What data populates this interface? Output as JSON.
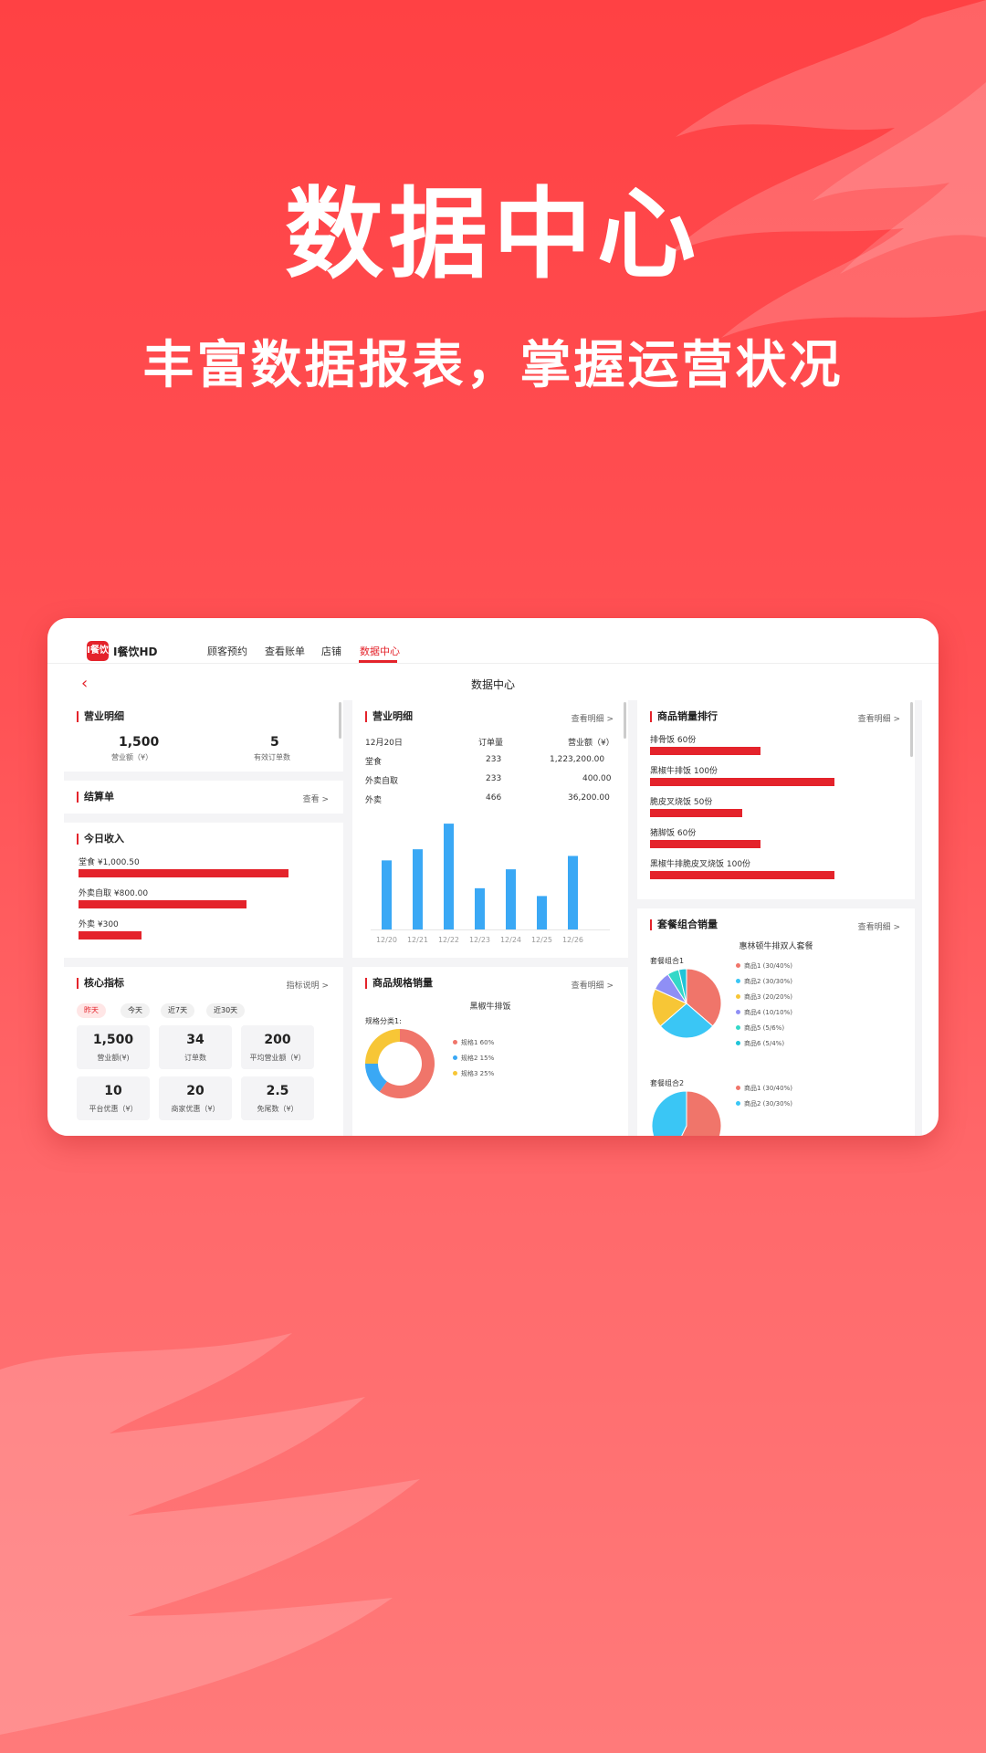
{
  "hero": {
    "title": "数据中心",
    "subtitle": "丰富数据报表，掌握运营状况"
  },
  "app": {
    "logo_mark": "I餐饮",
    "name": "I餐饮HD",
    "nav": [
      "顾客预约",
      "查看账单",
      "店铺",
      "数据中心"
    ],
    "active_nav": "数据中心",
    "page_title": "数据中心"
  },
  "revenue_card": {
    "title": "营业明细",
    "stats": [
      {
        "value": "1,500",
        "label": "营业额（¥）"
      },
      {
        "value": "5",
        "label": "有效订单数"
      }
    ]
  },
  "settlement_card": {
    "title": "结算单",
    "link": "查看 >"
  },
  "income_card": {
    "title": "今日收入",
    "items": [
      {
        "label": "堂食 ¥1,000.50",
        "value": 1000.5
      },
      {
        "label": "外卖自取 ¥800.00",
        "value": 800
      },
      {
        "label": "外卖 ¥300",
        "value": 300
      }
    ]
  },
  "core_card": {
    "title": "核心指标",
    "link": "指标说明 >",
    "chips": [
      "昨天",
      "今天",
      "近7天",
      "近30天"
    ],
    "active_chip": "昨天",
    "metrics": [
      {
        "value": "1,500",
        "label": "营业额(¥)"
      },
      {
        "value": "34",
        "label": "订单数"
      },
      {
        "value": "200",
        "label": "平均营业额（¥）"
      },
      {
        "value": "10",
        "label": "平台优惠（¥）"
      },
      {
        "value": "20",
        "label": "商家优惠（¥）"
      },
      {
        "value": "2.5",
        "label": "免尾数（¥）"
      }
    ]
  },
  "detail_card": {
    "title": "营业明细",
    "link": "查看明细 >",
    "table": {
      "headers": [
        "12月20日",
        "订单量",
        "营业额（¥）"
      ],
      "rows": [
        [
          "堂食",
          "233",
          "1,223,200.00"
        ],
        [
          "外卖自取",
          "233",
          "400.00"
        ],
        [
          "外卖",
          "466",
          "36,200.00"
        ]
      ]
    }
  },
  "chart_data": {
    "type": "bar",
    "categories": [
      "12/20",
      "12/21",
      "12/22",
      "12/23",
      "12/24",
      "12/25",
      "12/26"
    ],
    "values": [
      62,
      72,
      95,
      37,
      54,
      30,
      66
    ],
    "ylim": [
      0,
      100
    ],
    "grid": false,
    "color": "#3aa8f5"
  },
  "spec_card": {
    "title": "商品规格销量",
    "link": "查看明细 >",
    "product": "黑椒牛排饭",
    "group_label": "规格分类1:",
    "slices": [
      {
        "label": "规格1 60%",
        "value": 60,
        "color": "#f0756a"
      },
      {
        "label": "规格2 15%",
        "value": 15,
        "color": "#3aa8f5"
      },
      {
        "label": "规格3 25%",
        "value": 25,
        "color": "#f7c636"
      }
    ]
  },
  "rank_card": {
    "title": "商品销量排行",
    "link": "查看明细 >",
    "items": [
      {
        "label": "排骨饭  60份",
        "value": 60
      },
      {
        "label": "黑椒牛排饭  100份",
        "value": 100
      },
      {
        "label": "脆皮叉烧饭  50份",
        "value": 50
      },
      {
        "label": "猪脚饭  60份",
        "value": 60
      },
      {
        "label": "黑椒牛排脆皮叉烧饭  100份",
        "value": 100
      }
    ]
  },
  "combo_card": {
    "title": "套餐组合销量",
    "link": "查看明细 >",
    "combo_name": "惠林顿牛排双人套餐",
    "groups": [
      {
        "label": "套餐组合1",
        "items": [
          {
            "label": "商品1 (30/40%)",
            "value": 40,
            "color": "#f0756a"
          },
          {
            "label": "商品2 (30/30%)",
            "value": 30,
            "color": "#3ac6f5"
          },
          {
            "label": "商品3 (20/20%)",
            "value": 20,
            "color": "#f7c636"
          },
          {
            "label": "商品4 (10/10%)",
            "value": 10,
            "color": "#8f8ff5"
          },
          {
            "label": "商品5 (5/6%)",
            "value": 6,
            "color": "#34d8c8"
          },
          {
            "label": "商品6 (5/4%)",
            "value": 4,
            "color": "#20c4d8"
          }
        ]
      },
      {
        "label": "套餐组合2",
        "items": [
          {
            "label": "商品1 (30/40%)",
            "value": 40,
            "color": "#f0756a"
          },
          {
            "label": "商品2 (30/30%)",
            "value": 30,
            "color": "#3ac6f5"
          }
        ]
      }
    ]
  },
  "colors": {
    "brand": "#e4232b",
    "background_top": "#ff4144",
    "background_bottom": "#ff7a7a"
  }
}
